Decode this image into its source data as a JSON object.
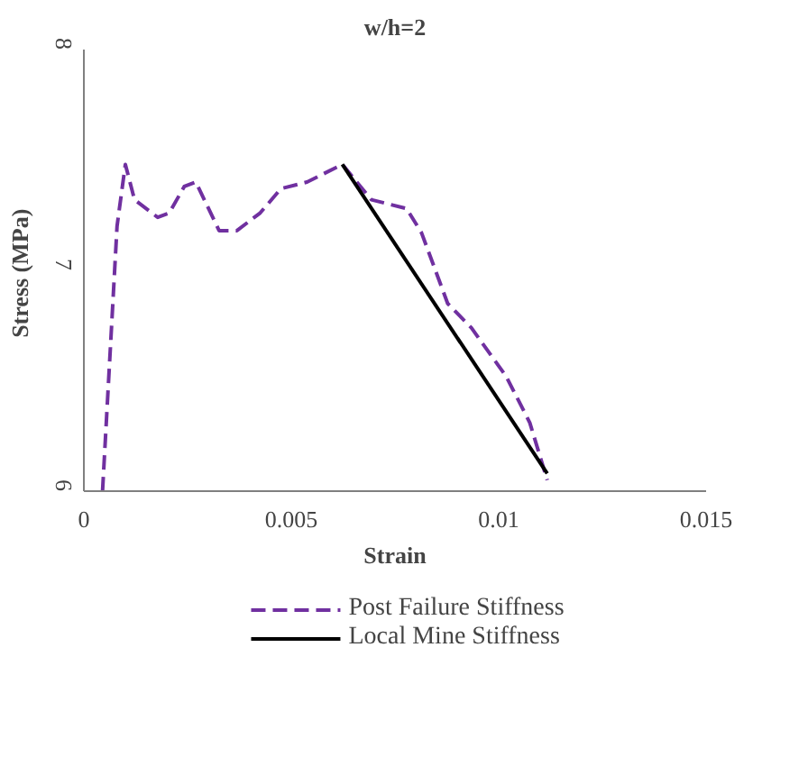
{
  "chart_data": {
    "type": "line",
    "title": "w/h=2",
    "xlabel": "Strain",
    "ylabel": "Stress  (MPa)",
    "xlim": [
      0,
      0.015
    ],
    "ylim": [
      6,
      8
    ],
    "xticks": [
      0,
      0.005,
      0.01,
      0.015
    ],
    "yticks": [
      6,
      7,
      8
    ],
    "grid": false,
    "legend": "bottom",
    "marker": "none",
    "series": [
      {
        "name": "Post Failure Stiffness",
        "color": "#7030a0",
        "line_style": "dashed",
        "x": [
          0.00045,
          0.0008,
          0.001,
          0.00122,
          0.00178,
          0.00206,
          0.00242,
          0.0027,
          0.00326,
          0.00369,
          0.00425,
          0.00475,
          0.00538,
          0.00623,
          0.00693,
          0.00778,
          0.00814,
          0.00877,
          0.00934,
          0.01018,
          0.01075,
          0.01117
        ],
        "values": [
          6.0,
          7.2,
          7.48,
          7.32,
          7.24,
          7.26,
          7.38,
          7.4,
          7.18,
          7.18,
          7.26,
          7.37,
          7.4,
          7.48,
          7.32,
          7.28,
          7.17,
          6.85,
          6.74,
          6.52,
          6.31,
          6.05
        ]
      },
      {
        "name": "Local Mine Stiffness",
        "color": "#000000",
        "line_style": "solid",
        "x": [
          0.00623,
          0.01117
        ],
        "values": [
          7.48,
          6.08
        ]
      }
    ]
  }
}
